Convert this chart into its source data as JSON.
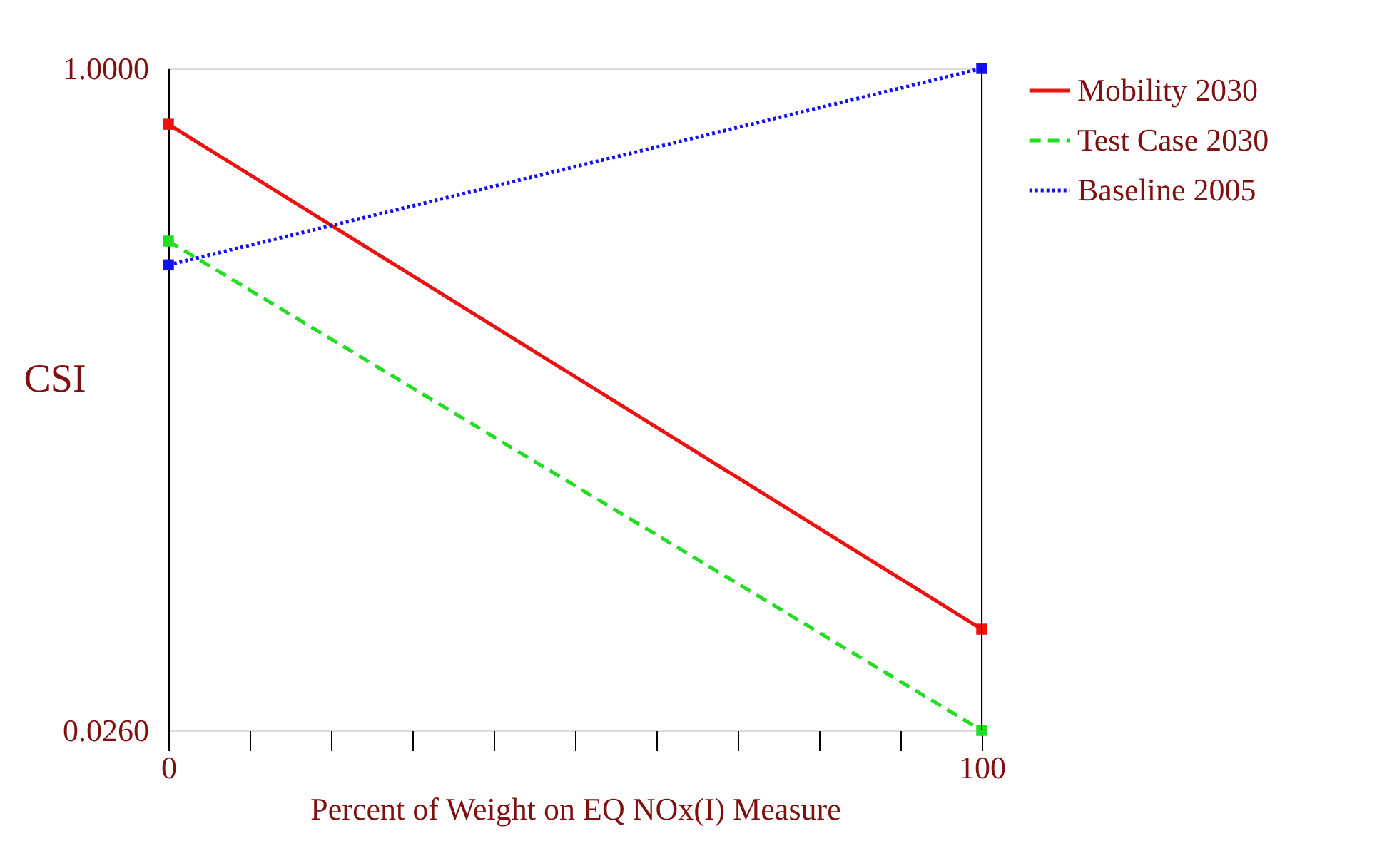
{
  "chart_data": {
    "type": "line",
    "xlabel": "Percent of Weight on EQ  NOx(I) Measure",
    "ylabel": "CSI",
    "x": [
      0,
      100
    ],
    "xlim": [
      0,
      100
    ],
    "xticks": [
      0,
      {
        "value": 10,
        "label": null
      },
      {
        "value": 20,
        "label": null
      },
      {
        "value": 30,
        "label": null
      },
      {
        "value": 40,
        "label": null
      },
      {
        "value": 50,
        "label": null
      },
      {
        "value": 60,
        "label": null
      },
      {
        "value": 70,
        "label": null
      },
      {
        "value": 80,
        "label": null
      },
      {
        "value": 90,
        "label": null
      },
      100
    ],
    "ylim": [
      0.026,
      1.0
    ],
    "yticks": [
      {
        "value": 0.026,
        "label": "0.0260"
      },
      {
        "value": 1.0,
        "label": "1.0000"
      }
    ],
    "series": [
      {
        "name": "Mobility 2030",
        "color": "#ee1111",
        "values": [
          0.918,
          0.175
        ],
        "line_style": "solid"
      },
      {
        "name": "Test Case 2030",
        "color": "#22dd22",
        "values": [
          0.746,
          0.026
        ],
        "line_style": "dashed"
      },
      {
        "name": "Baseline 2005",
        "color": "#1111ee",
        "values": [
          0.711,
          1.0
        ],
        "line_style": "dotted"
      }
    ],
    "marker": "square",
    "grid": false,
    "legend": "top right"
  }
}
